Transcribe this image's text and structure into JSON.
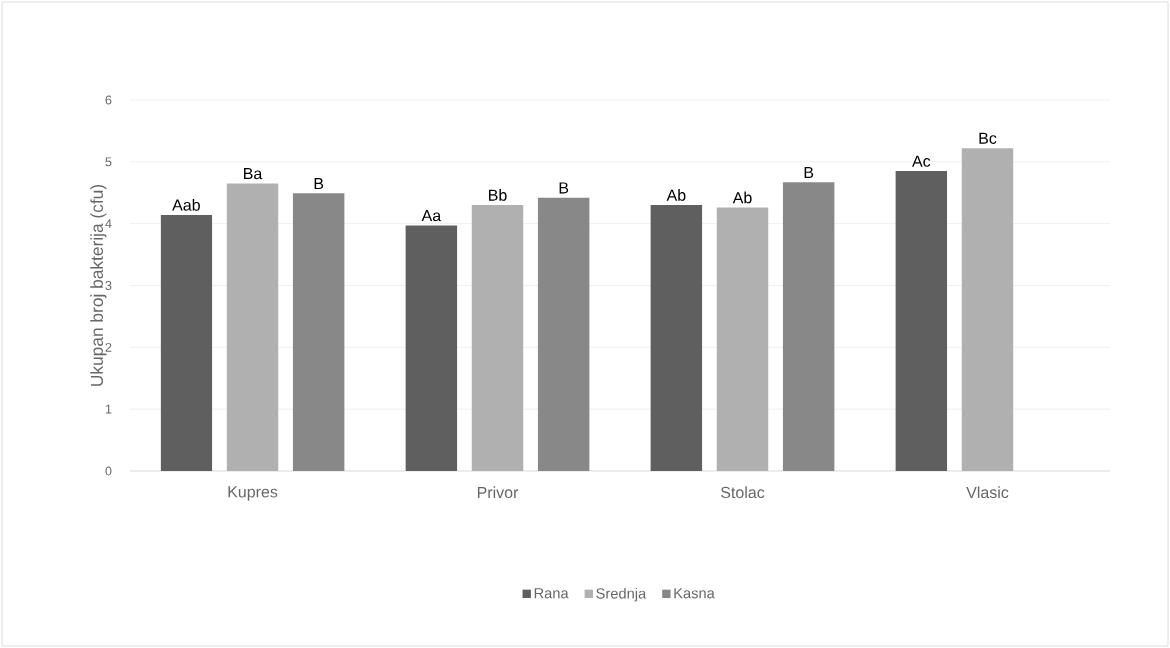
{
  "chart_data": {
    "type": "bar",
    "ylabel": "Ukupan broj bakterija (cfu)",
    "categories": [
      "Kupres",
      "Privor",
      "Stolac",
      "Vlasic"
    ],
    "series": [
      {
        "name": "Rana",
        "color": "#5f5f5f",
        "values": [
          4.14,
          3.97,
          4.3,
          4.85
        ],
        "value_labels": [
          "Aab",
          "Aa",
          "Ab",
          "Ac"
        ]
      },
      {
        "name": "Srednja",
        "color": "#b0b0b0",
        "values": [
          4.65,
          4.3,
          4.26,
          5.22
        ],
        "value_labels": [
          "Ba",
          "Bb",
          "Ab",
          "Bc"
        ]
      },
      {
        "name": "Kasna",
        "color": "#888888",
        "values": [
          4.49,
          4.42,
          4.67,
          null
        ],
        "value_labels": [
          "B",
          "B",
          "B",
          null
        ]
      }
    ],
    "ylim": [
      0,
      6
    ],
    "yticks": [
      0,
      1,
      2,
      3,
      4,
      5,
      6
    ],
    "grid": "y",
    "legend": "bottom"
  }
}
